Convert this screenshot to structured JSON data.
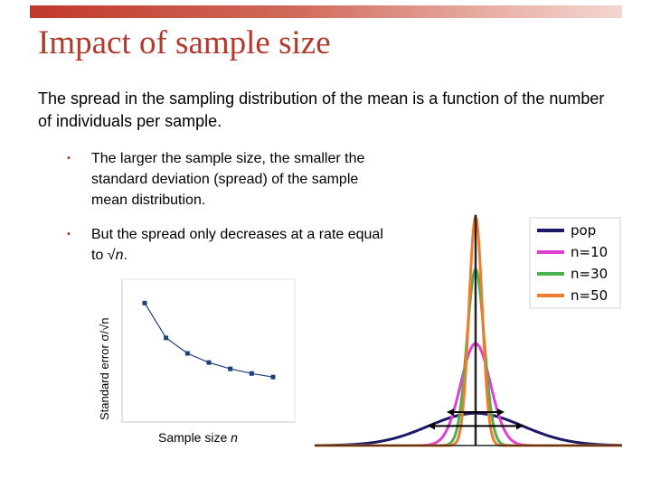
{
  "slide": {
    "title": "Impact of sample size",
    "intro": "The spread in the sampling distribution of the mean is a function of the number of individuals per sample.",
    "bullets": [
      {
        "marker": "▪",
        "text": "The larger the sample size, the smaller the standard deviation (spread) of the sample mean distribution."
      },
      {
        "marker": "▪",
        "text_before": "But the spread only decreases at a rate equal to √",
        "text_italic": "n",
        "text_after": "."
      }
    ]
  },
  "chart_data": [
    {
      "type": "line",
      "xlabel_prefix": "Sample size ",
      "xlabel_var": "n",
      "ylabel": "Standard error σ/√n",
      "x": [
        1,
        2,
        3,
        4,
        5,
        6,
        7
      ],
      "values": [
        1.0,
        0.707,
        0.577,
        0.5,
        0.447,
        0.408,
        0.378
      ],
      "ylim": [
        0,
        1.2
      ],
      "grid": false,
      "color": "#1f3f7a"
    },
    {
      "type": "line",
      "series": [
        {
          "name": "pop",
          "sd": 1.0,
          "color": "#1a1a66"
        },
        {
          "name": "n=10",
          "sd": 0.316,
          "color": "#e040d0"
        },
        {
          "name": "n=30",
          "sd": 0.183,
          "color": "#4caf50"
        },
        {
          "name": "n=50",
          "sd": 0.141,
          "color": "#f07b2a"
        }
      ],
      "legend": "top-right",
      "grid": false
    }
  ]
}
